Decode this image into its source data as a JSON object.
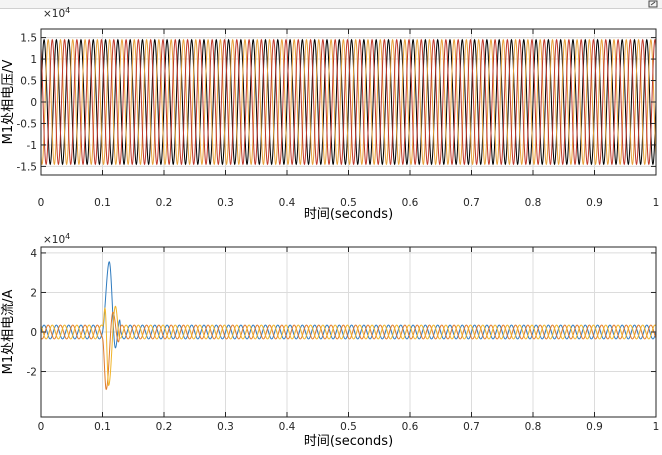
{
  "icons": {
    "corner": "resize-icon"
  },
  "chart_data": [
    {
      "type": "line",
      "ylabel": "M1处相电压/V",
      "xlabel": "时间(seconds)",
      "exponent": "×10",
      "exponent_power": "4",
      "xlim": [
        0,
        1
      ],
      "ylim": [
        -1.7,
        1.7
      ],
      "xticks": [
        "0",
        "0.1",
        "0.2",
        "0.3",
        "0.4",
        "0.5",
        "0.6",
        "0.7",
        "0.8",
        "0.9",
        "1"
      ],
      "yticks": [
        {
          "v": 1.5,
          "t": "1.5"
        },
        {
          "v": 1,
          "t": "1"
        },
        {
          "v": 0.5,
          "t": "0.5"
        },
        {
          "v": 0,
          "t": "0"
        },
        {
          "v": -0.5,
          "t": "-0.5"
        },
        {
          "v": -1,
          "t": "-1"
        },
        {
          "v": -1.5,
          "t": "-1.5"
        }
      ],
      "frequency_hz": 50,
      "series": [
        {
          "color": "#000000",
          "amplitude": 1.45,
          "phase_deg": 0
        },
        {
          "color": "#e8a13a",
          "amplitude": 1.45,
          "phase_deg": -120
        },
        {
          "color": "#c0392b",
          "amplitude": 1.45,
          "phase_deg": 120
        }
      ]
    },
    {
      "type": "line",
      "ylabel": "M1处相电流/A",
      "xlabel": "时间(seconds)",
      "exponent": "×10",
      "exponent_power": "4",
      "xlim": [
        0,
        1
      ],
      "ylim": [
        -4.3,
        4.3
      ],
      "xticks": [
        "0",
        "0.1",
        "0.2",
        "0.3",
        "0.4",
        "0.5",
        "0.6",
        "0.7",
        "0.8",
        "0.9",
        "1"
      ],
      "yticks": [
        {
          "v": 4,
          "t": "4"
        },
        {
          "v": 2,
          "t": "2"
        },
        {
          "v": 0,
          "t": "0"
        },
        {
          "v": -2,
          "t": "-2"
        }
      ],
      "frequency_hz": 50,
      "steady_amplitude": 0.35,
      "fault_start": 0.1,
      "fault_end": 0.13,
      "series": [
        {
          "color": "#2f7bbf",
          "phase_deg": 0,
          "fault_peaks": [
            [
              0.111,
              3.55
            ],
            [
              0.121,
              -0.8
            ],
            [
              0.128,
              0.6
            ]
          ]
        },
        {
          "color": "#e07b2a",
          "phase_deg": -120,
          "fault_peaks": [
            [
              0.106,
              -2.9
            ],
            [
              0.117,
              1.0
            ],
            [
              0.126,
              -0.5
            ]
          ]
        },
        {
          "color": "#f0b429",
          "phase_deg": 120,
          "fault_peaks": [
            [
              0.104,
              1.2
            ],
            [
              0.11,
              -2.7
            ],
            [
              0.121,
              1.3
            ],
            [
              0.128,
              -0.3
            ]
          ]
        }
      ]
    }
  ]
}
